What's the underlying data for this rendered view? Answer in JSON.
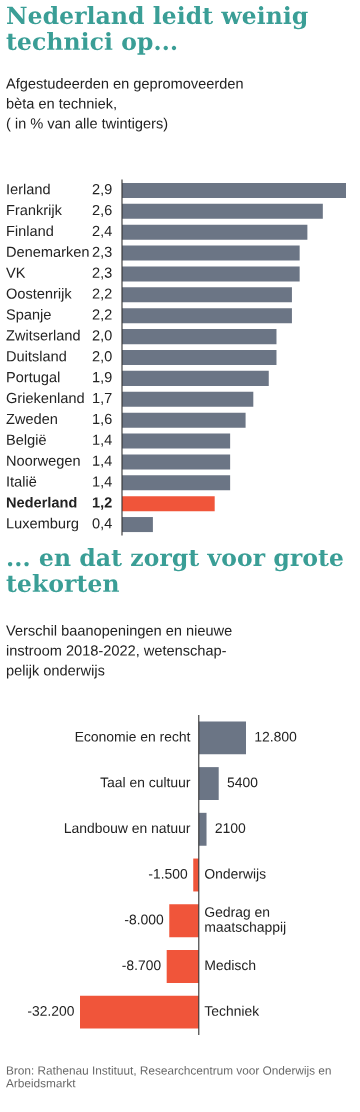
{
  "chart_data": [
    {
      "type": "bar",
      "orientation": "horizontal",
      "title": "Nederland leidt weinig technici op...",
      "subtitle": "Afgestudeerden en gepromoveerden\nbèta en techniek,\n( in % van alle twintigers)",
      "categories": [
        "Ierland",
        "Frankrijk",
        "Finland",
        "Denemarken",
        "VK",
        "Oostenrijk",
        "Spanje",
        "Zwitserland",
        "Duitsland",
        "Portugal",
        "Griekenland",
        "Zweden",
        "België",
        "Noorwegen",
        "Italië",
        "Nederland",
        "Luxemburg"
      ],
      "values": [
        2.9,
        2.6,
        2.4,
        2.3,
        2.3,
        2.2,
        2.2,
        2.0,
        2.0,
        1.9,
        1.7,
        1.6,
        1.4,
        1.4,
        1.4,
        1.2,
        0.4
      ],
      "value_labels": [
        "2,9",
        "2,6",
        "2,4",
        "2,3",
        "2,3",
        "2,2",
        "2,2",
        "2,0",
        "2,0",
        "1,9",
        "1,7",
        "1,6",
        "1,4",
        "1,4",
        "1,4",
        "1,2",
        "0,4"
      ],
      "colors": [
        "#6b7585",
        "#6b7585",
        "#6b7585",
        "#6b7585",
        "#6b7585",
        "#6b7585",
        "#6b7585",
        "#6b7585",
        "#6b7585",
        "#6b7585",
        "#6b7585",
        "#6b7585",
        "#6b7585",
        "#6b7585",
        "#6b7585",
        "#f0553a",
        "#6b7585"
      ]
    },
    {
      "type": "bar",
      "orientation": "horizontal",
      "title": "... en dat zorgt voor grote tekorten",
      "subtitle": "Verschil baanopeningen en nieuwe\ninstroom 2018-2022, wetenschap-\npelijk onderwijs",
      "categories": [
        "Economie en recht",
        "Taal en cultuur",
        "Landbouw en natuur",
        "Onderwijs",
        "Gedrag en\nmaatschappij",
        "Medisch",
        "Techniek"
      ],
      "values": [
        12800,
        5400,
        2100,
        -1500,
        -8000,
        -8700,
        -32200
      ],
      "value_labels": [
        "12.800",
        "5400",
        "2100",
        "-1.500",
        "-8.000",
        "-8.700",
        "-32.200"
      ],
      "colors": [
        "#6b7585",
        "#6b7585",
        "#6b7585",
        "#f0553a",
        "#f0553a",
        "#f0553a",
        "#f0553a"
      ],
      "annotations": [
        "Bron: Rathenau Instituut, Researchcentrum voor Onderwijs en Arbeidsmarkt"
      ]
    }
  ]
}
